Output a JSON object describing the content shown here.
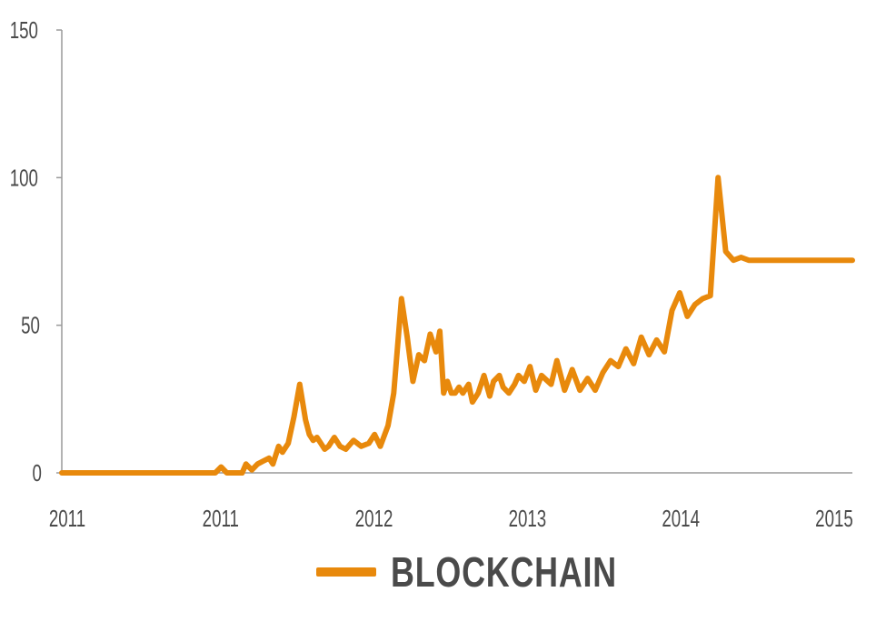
{
  "chart_data": {
    "type": "line",
    "title": "",
    "xlabel": "",
    "ylabel": "",
    "ylim": [
      0,
      150
    ],
    "y_ticks": [
      "0",
      "50",
      "100",
      "150"
    ],
    "x_tick_labels": [
      "2011",
      "2011",
      "2012",
      "2013",
      "2014",
      "2015"
    ],
    "grid": false,
    "legend_position": "bottom-center",
    "series": [
      {
        "name": "BLOCKCHAIN",
        "color": "#E8890C",
        "x": [
          2011.0,
          2011.5,
          2011.8,
          2011.83,
          2011.86,
          2011.9,
          2011.94,
          2011.96,
          2011.99,
          2012.02,
          2012.05,
          2012.08,
          2012.1,
          2012.13,
          2012.15,
          2012.18,
          2012.21,
          2012.24,
          2012.27,
          2012.29,
          2012.31,
          2012.33,
          2012.35,
          2012.37,
          2012.39,
          2012.42,
          2012.45,
          2012.48,
          2012.52,
          2012.56,
          2012.6,
          2012.63,
          2012.66,
          2012.7,
          2012.73,
          2012.77,
          2012.8,
          2012.83,
          2012.86,
          2012.89,
          2012.92,
          2012.95,
          2012.97,
          2012.99,
          2013.01,
          2013.03,
          2013.05,
          2013.07,
          2013.09,
          2013.12,
          2013.14,
          2013.17,
          2013.2,
          2013.23,
          2013.25,
          2013.28,
          2013.3,
          2013.33,
          2013.36,
          2013.38,
          2013.41,
          2013.44,
          2013.47,
          2013.5,
          2013.55,
          2013.58,
          2013.62,
          2013.66,
          2013.7,
          2013.74,
          2013.78,
          2013.82,
          2013.86,
          2013.9,
          2013.94,
          2013.98,
          2014.02,
          2014.06,
          2014.1,
          2014.14,
          2014.18,
          2014.22,
          2014.26,
          2014.3,
          2014.34,
          2014.38,
          2014.42,
          2014.46,
          2014.5,
          2014.54,
          2014.58,
          2014.62,
          2014.66,
          2014.7,
          2014.74,
          2014.78,
          2014.82,
          2014.86,
          2014.88,
          2014.91,
          2014.93,
          2014.95,
          2014.97,
          2014.99,
          2015.01,
          2015.03,
          2015.06,
          2015.09,
          2015.12
        ],
        "values": [
          0,
          0,
          0,
          2,
          0,
          0,
          0,
          3,
          1,
          3,
          4,
          5,
          3,
          9,
          7,
          10,
          19,
          30,
          18,
          13,
          11,
          12,
          10,
          8,
          9,
          12,
          9,
          8,
          11,
          9,
          10,
          13,
          9,
          16,
          27,
          59,
          46,
          31,
          40,
          38,
          47,
          41,
          48,
          27,
          31,
          27,
          27,
          29,
          27,
          30,
          24,
          27,
          33,
          26,
          31,
          33,
          29,
          27,
          30,
          33,
          31,
          36,
          28,
          33,
          30,
          38,
          28,
          35,
          28,
          32,
          28,
          34,
          38,
          36,
          42,
          37,
          46,
          40,
          45,
          41,
          55,
          61,
          53,
          57,
          59,
          60,
          100,
          75,
          72,
          73,
          72,
          72,
          72,
          72,
          72,
          72,
          72,
          72,
          72,
          72,
          72,
          72,
          72,
          72,
          72,
          72,
          72,
          72,
          72
        ]
      }
    ]
  }
}
